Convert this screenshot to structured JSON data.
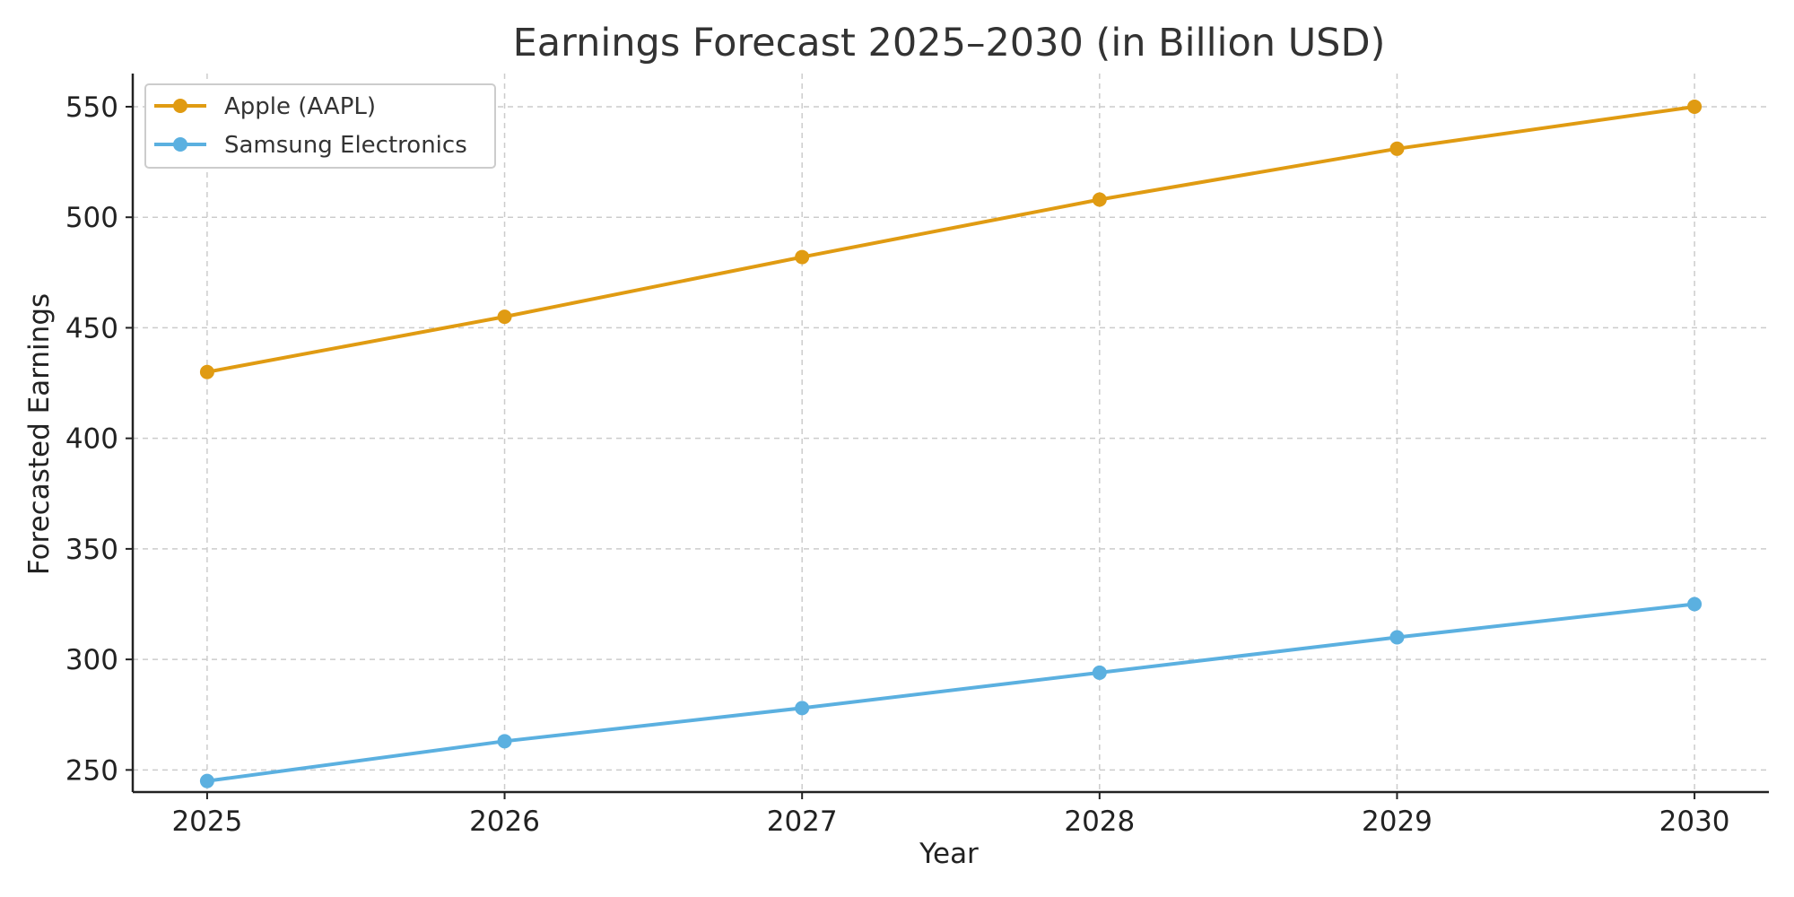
{
  "chart_data": {
    "type": "line",
    "title": "Earnings Forecast 2025–2030 (in Billion USD)",
    "xlabel": "Year",
    "ylabel": "Forecasted Earnings",
    "x": [
      2025,
      2026,
      2027,
      2028,
      2029,
      2030
    ],
    "x_tick_labels": [
      "2025",
      "2026",
      "2027",
      "2028",
      "2029",
      "2030"
    ],
    "y_ticks": [
      250,
      300,
      350,
      400,
      450,
      500,
      550
    ],
    "y_tick_labels": [
      "250",
      "300",
      "350",
      "400",
      "450",
      "500",
      "550"
    ],
    "xlim": [
      2024.75,
      2030.25
    ],
    "ylim": [
      240,
      565
    ],
    "grid": true,
    "legend_position": "top-left",
    "series": [
      {
        "name": "Apple (AAPL)",
        "color": "#E09B12",
        "values": [
          430,
          455,
          482,
          508,
          531,
          550
        ]
      },
      {
        "name": "Samsung Electronics",
        "color": "#5BB0E0",
        "values": [
          245,
          263,
          278,
          294,
          310,
          325
        ]
      }
    ]
  }
}
